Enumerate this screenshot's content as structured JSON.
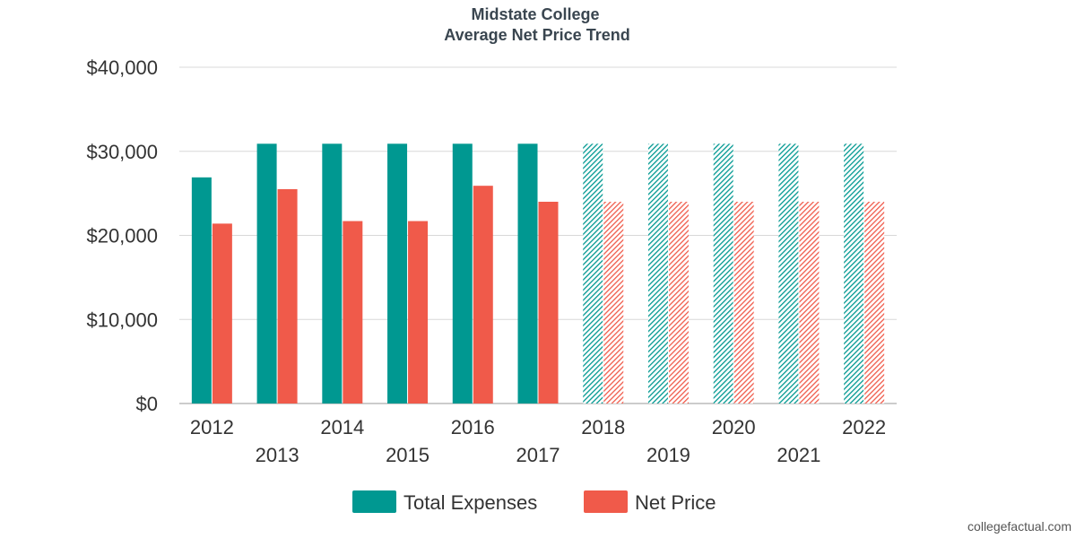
{
  "chart_data": {
    "type": "bar",
    "title": "Midstate College",
    "subtitle": "Average Net Price Trend",
    "categories": [
      "2012",
      "2013",
      "2014",
      "2015",
      "2016",
      "2017",
      "2018",
      "2019",
      "2020",
      "2021",
      "2022"
    ],
    "series": [
      {
        "name": "Total Expenses",
        "color": "#009891",
        "values": [
          26900,
          30900,
          30900,
          30900,
          30900,
          30900,
          30900,
          30900,
          30900,
          30900,
          30900
        ]
      },
      {
        "name": "Net Price",
        "color": "#f05a4a",
        "values": [
          21400,
          25500,
          21700,
          21700,
          25900,
          24000,
          24000,
          24000,
          24000,
          24000,
          24000
        ]
      }
    ],
    "projected_from": "2018",
    "ylim": [
      0,
      40000
    ],
    "yticks": [
      0,
      10000,
      20000,
      30000,
      40000
    ],
    "ytick_labels": [
      "$0",
      "$10,000",
      "$20,000",
      "$30,000",
      "$40,000"
    ],
    "grid": true,
    "legend_position": "bottom"
  },
  "watermark": "collegefactual.com"
}
